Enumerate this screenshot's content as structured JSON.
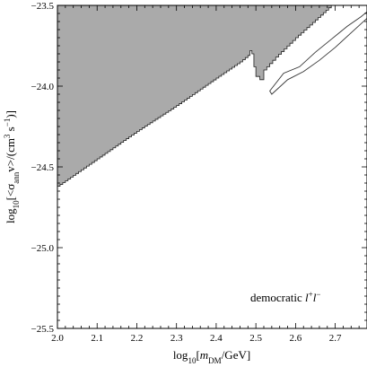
{
  "chart_data": {
    "type": "area",
    "x_label_base": "log",
    "x_label_sub": "10",
    "x_label_bracket_open": "[",
    "x_label_m": "m",
    "x_label_m_sub": "DM",
    "x_label_rest": "/GeV]",
    "y_label_base": "log",
    "y_label_sub": "10",
    "y_label_body": "[<σ",
    "y_label_sigma_sub": "ann",
    "y_label_v": "v>/(cm",
    "y_label_cm_sup": "3",
    "y_label_s": " s",
    "y_label_s_sup": "−1",
    "y_label_close": ")]",
    "xlim": [
      2.0,
      2.78
    ],
    "ylim": [
      -25.5,
      -23.5
    ],
    "x_ticks_major": [
      2.0,
      2.1,
      2.2,
      2.3,
      2.4,
      2.5,
      2.6,
      2.7
    ],
    "x_tick_labels": [
      "2.0",
      "2.1",
      "2.2",
      "2.3",
      "2.4",
      "2.5",
      "2.6",
      "2.7"
    ],
    "y_ticks_major": [
      -25.5,
      -25.0,
      -24.5,
      -24.0,
      -23.5
    ],
    "y_tick_labels": [
      "−25.5",
      "−25.0",
      "−24.5",
      "−24.0",
      "−23.5"
    ],
    "annotation": "democratic",
    "annotation_lepton": "l",
    "annotation_plus": "+",
    "annotation_lepton2": "l",
    "annotation_minus": "−",
    "excluded_region_lower_boundary": [
      {
        "x": 2.0,
        "y": -24.62
      },
      {
        "x": 2.1,
        "y": -24.45
      },
      {
        "x": 2.2,
        "y": -24.28
      },
      {
        "x": 2.3,
        "y": -24.12
      },
      {
        "x": 2.4,
        "y": -23.95
      },
      {
        "x": 2.46,
        "y": -23.85
      },
      {
        "x": 2.48,
        "y": -23.81
      },
      {
        "x": 2.485,
        "y": -23.78
      },
      {
        "x": 2.49,
        "y": -23.8
      },
      {
        "x": 2.495,
        "y": -23.88
      },
      {
        "x": 2.5,
        "y": -23.94
      },
      {
        "x": 2.51,
        "y": -23.96
      },
      {
        "x": 2.52,
        "y": -23.9
      },
      {
        "x": 2.55,
        "y": -23.82
      },
      {
        "x": 2.6,
        "y": -23.7
      },
      {
        "x": 2.65,
        "y": -23.59
      },
      {
        "x": 2.69,
        "y": -23.5
      }
    ],
    "open_contour": [
      {
        "x": 2.535,
        "y": -24.03
      },
      {
        "x": 2.57,
        "y": -23.92
      },
      {
        "x": 2.61,
        "y": -23.88
      },
      {
        "x": 2.65,
        "y": -23.79
      },
      {
        "x": 2.69,
        "y": -23.71
      },
      {
        "x": 2.73,
        "y": -23.63
      },
      {
        "x": 2.765,
        "y": -23.57
      },
      {
        "x": 2.78,
        "y": -23.54
      },
      {
        "x": 2.78,
        "y": -23.58
      },
      {
        "x": 2.74,
        "y": -23.67
      },
      {
        "x": 2.7,
        "y": -23.76
      },
      {
        "x": 2.66,
        "y": -23.84
      },
      {
        "x": 2.62,
        "y": -23.91
      },
      {
        "x": 2.58,
        "y": -23.96
      },
      {
        "x": 2.54,
        "y": -24.05
      }
    ],
    "region_color": "#aaaaaa",
    "grid": false
  }
}
